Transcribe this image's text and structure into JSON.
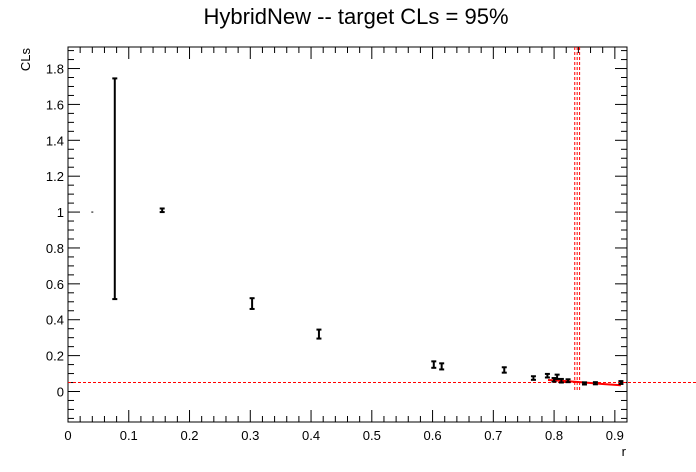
{
  "chart_data": {
    "type": "scatter",
    "title": "HybridNew -- target CLs = 95%",
    "xlabel": "r",
    "ylabel": "CLs",
    "xlim": [
      0,
      0.92
    ],
    "ylim": [
      -0.17,
      1.92
    ],
    "x_ticks": [
      0,
      0.1,
      0.2,
      0.3,
      0.4,
      0.5,
      0.6,
      0.7,
      0.8,
      0.9
    ],
    "x_tick_labels": [
      "0",
      "0.1",
      "0.2",
      "0.3",
      "0.4",
      "0.5",
      "0.6",
      "0.7",
      "0.8",
      "0.9"
    ],
    "y_ticks": [
      0,
      0.2,
      0.4,
      0.6,
      0.8,
      1,
      1.2,
      1.4,
      1.6,
      1.8
    ],
    "y_tick_labels": [
      "0",
      "0.2",
      "0.4",
      "0.6",
      "0.8",
      "1",
      "1.2",
      "1.4",
      "1.6",
      "1.8"
    ],
    "grid": false,
    "series": [
      {
        "color": "#000000",
        "points": [
          {
            "x": 0.04,
            "y": 1.0,
            "err": 0.0
          },
          {
            "x": 0.077,
            "y": 1.13,
            "err": 0.615
          },
          {
            "x": 0.155,
            "y": 1.01,
            "err": 0.01
          },
          {
            "x": 0.303,
            "y": 0.49,
            "err": 0.03
          },
          {
            "x": 0.413,
            "y": 0.32,
            "err": 0.025
          },
          {
            "x": 0.602,
            "y": 0.15,
            "err": 0.018
          },
          {
            "x": 0.615,
            "y": 0.14,
            "err": 0.017
          },
          {
            "x": 0.718,
            "y": 0.12,
            "err": 0.015
          },
          {
            "x": 0.766,
            "y": 0.075,
            "err": 0.01
          },
          {
            "x": 0.789,
            "y": 0.088,
            "err": 0.01
          },
          {
            "x": 0.8,
            "y": 0.065,
            "err": 0.01
          },
          {
            "x": 0.805,
            "y": 0.082,
            "err": 0.012
          },
          {
            "x": 0.812,
            "y": 0.06,
            "err": 0.01
          },
          {
            "x": 0.823,
            "y": 0.06,
            "err": 0.008
          },
          {
            "x": 0.85,
            "y": 0.045,
            "err": 0.006
          },
          {
            "x": 0.868,
            "y": 0.046,
            "err": 0.006
          },
          {
            "x": 0.91,
            "y": 0.05,
            "err": 0.008
          }
        ]
      }
    ],
    "fit_curve": {
      "color": "#ff0000",
      "points": [
        [
          0.79,
          0.064
        ],
        [
          0.82,
          0.058
        ],
        [
          0.85,
          0.05
        ],
        [
          0.88,
          0.042
        ],
        [
          0.91,
          0.035
        ]
      ]
    },
    "reference_lines": {
      "color": "#ff0000",
      "horizontal_y": 0.05,
      "vertical_x": [
        0.838,
        0.834,
        0.842
      ]
    }
  }
}
